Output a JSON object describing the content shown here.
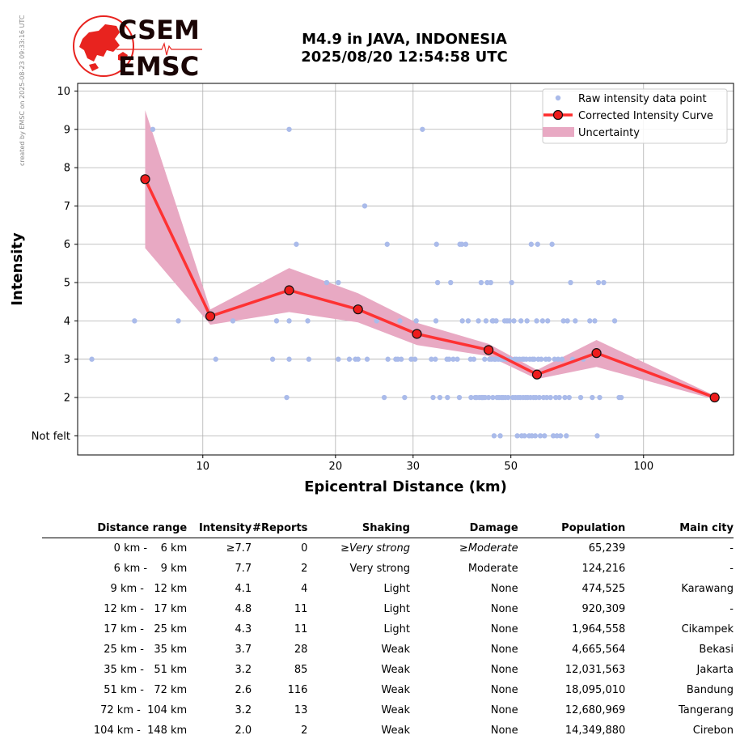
{
  "credit": "created by EMSC on 2025-08-23 09:33:16 UTC",
  "logo": {
    "line1": "CSEM",
    "line2": "EMSC",
    "accent": "#e8231f"
  },
  "title": {
    "line1": "M4.9 in JAVA, INDONESIA",
    "line2": "2025/08/20 12:54:58 UTC"
  },
  "chart_data": {
    "type": "line",
    "xlabel": "Epicentral Distance (km)",
    "ylabel": "Intensity",
    "x_scale": "log",
    "xlim": [
      5.2,
      160
    ],
    "ylim": [
      0.5,
      10.2
    ],
    "x_ticks": [
      10,
      20,
      30,
      50,
      100
    ],
    "y_ticks": [
      1,
      2,
      3,
      4,
      5,
      6,
      7,
      8,
      9,
      10
    ],
    "y_tick_labels": [
      "Not felt",
      "2",
      "3",
      "4",
      "5",
      "6",
      "7",
      "8",
      "9",
      "10"
    ],
    "grid": true,
    "legend_position": "top-right",
    "legend": [
      "Raw intensity data point",
      "Corrected Intensity Curve",
      "Uncertainty"
    ],
    "colors": {
      "raw": "#aabbea",
      "curve": "#ff2b2b",
      "marker_edge": "#111111",
      "uncertainty": "#e8a9c3"
    },
    "corrected_curve": {
      "x": [
        7.4,
        10.4,
        15.7,
        22.5,
        30.6,
        44.5,
        57.3,
        78.2,
        145.0
      ],
      "y": [
        7.7,
        4.12,
        4.8,
        4.3,
        3.66,
        3.24,
        2.6,
        3.16,
        2.0
      ]
    },
    "uncertainty": {
      "x": [
        7.4,
        10.4,
        15.7,
        22.5,
        30.6,
        44.5,
        57.3,
        78.2,
        145.0
      ],
      "upper": [
        9.5,
        4.3,
        5.38,
        4.72,
        3.95,
        3.4,
        2.72,
        3.5,
        2.05
      ],
      "lower": [
        5.9,
        3.9,
        4.23,
        3.96,
        3.37,
        3.08,
        2.48,
        2.8,
        1.95
      ]
    },
    "raw_points": [
      [
        5.6,
        3
      ],
      [
        7,
        4
      ],
      [
        7.7,
        9
      ],
      [
        8.8,
        4
      ],
      [
        10.7,
        3
      ],
      [
        11.7,
        4
      ],
      [
        14.4,
        3
      ],
      [
        14.7,
        4
      ],
      [
        15.7,
        9
      ],
      [
        15.7,
        4
      ],
      [
        15.7,
        3
      ],
      [
        15.5,
        2
      ],
      [
        16.3,
        6
      ],
      [
        17.3,
        4
      ],
      [
        17.4,
        3
      ],
      [
        19.1,
        5
      ],
      [
        20.3,
        5
      ],
      [
        20.3,
        3
      ],
      [
        21.5,
        3
      ],
      [
        22.2,
        3
      ],
      [
        22.5,
        3
      ],
      [
        23.3,
        7
      ],
      [
        23.6,
        3
      ],
      [
        24.8,
        4
      ],
      [
        25.8,
        2
      ],
      [
        26.2,
        6
      ],
      [
        26.3,
        3
      ],
      [
        27.4,
        3
      ],
      [
        27.7,
        3
      ],
      [
        28,
        4
      ],
      [
        28.2,
        3
      ],
      [
        28.7,
        2
      ],
      [
        29.7,
        3
      ],
      [
        30.3,
        3
      ],
      [
        30.5,
        4
      ],
      [
        31.5,
        9
      ],
      [
        33,
        3
      ],
      [
        33.3,
        2
      ],
      [
        33.7,
        3
      ],
      [
        33.8,
        4
      ],
      [
        33.9,
        6
      ],
      [
        34.1,
        5
      ],
      [
        34.5,
        2
      ],
      [
        35.8,
        3
      ],
      [
        35.9,
        2
      ],
      [
        36.2,
        3
      ],
      [
        36.5,
        5
      ],
      [
        37,
        3
      ],
      [
        37.8,
        3
      ],
      [
        38.2,
        2
      ],
      [
        38.3,
        6
      ],
      [
        38.7,
        6
      ],
      [
        38.8,
        4
      ],
      [
        39.5,
        6
      ],
      [
        40,
        4
      ],
      [
        40.5,
        3
      ],
      [
        40.6,
        2
      ],
      [
        41.2,
        3
      ],
      [
        41.5,
        2
      ],
      [
        41.8,
        2
      ],
      [
        42.2,
        4
      ],
      [
        42.4,
        2
      ],
      [
        42.8,
        5
      ],
      [
        42.9,
        2
      ],
      [
        43.1,
        2
      ],
      [
        43.3,
        2
      ],
      [
        43.6,
        3
      ],
      [
        43.7,
        2
      ],
      [
        43.9,
        4
      ],
      [
        44.2,
        5
      ],
      [
        44.5,
        2
      ],
      [
        44.7,
        3
      ],
      [
        45,
        5
      ],
      [
        45.2,
        3
      ],
      [
        45.4,
        4
      ],
      [
        45.5,
        2
      ],
      [
        45.6,
        4
      ],
      [
        45.8,
        1
      ],
      [
        45.9,
        3
      ],
      [
        46.1,
        3
      ],
      [
        46.3,
        4
      ],
      [
        46.5,
        2
      ],
      [
        46.8,
        3
      ],
      [
        47,
        2
      ],
      [
        47.3,
        1
      ],
      [
        47.4,
        3
      ],
      [
        47.6,
        2
      ],
      [
        47.8,
        3
      ],
      [
        48,
        2
      ],
      [
        48.2,
        3
      ],
      [
        48.4,
        4
      ],
      [
        48.6,
        2
      ],
      [
        48.8,
        3
      ],
      [
        49,
        4
      ],
      [
        49.3,
        2
      ],
      [
        49.6,
        4
      ],
      [
        49.8,
        3
      ],
      [
        50.2,
        5
      ],
      [
        50.5,
        2
      ],
      [
        50.8,
        4
      ],
      [
        51,
        3
      ],
      [
        51.2,
        2
      ],
      [
        51.5,
        3
      ],
      [
        51.7,
        1
      ],
      [
        51.9,
        2
      ],
      [
        52.3,
        3
      ],
      [
        52.5,
        2
      ],
      [
        52.7,
        4
      ],
      [
        52.9,
        1
      ],
      [
        53.1,
        3
      ],
      [
        53.3,
        2
      ],
      [
        53.5,
        3
      ],
      [
        53.7,
        1
      ],
      [
        54,
        2
      ],
      [
        54.2,
        3
      ],
      [
        54.4,
        4
      ],
      [
        54.6,
        2
      ],
      [
        55,
        1
      ],
      [
        55.2,
        3
      ],
      [
        55.4,
        2
      ],
      [
        55.6,
        6
      ],
      [
        55.8,
        1
      ],
      [
        56,
        3
      ],
      [
        56.3,
        2
      ],
      [
        56.5,
        3
      ],
      [
        56.8,
        1
      ],
      [
        57,
        2
      ],
      [
        57.2,
        4
      ],
      [
        57.5,
        6
      ],
      [
        57.7,
        3
      ],
      [
        58,
        2
      ],
      [
        58.3,
        1
      ],
      [
        58.6,
        3
      ],
      [
        59,
        4
      ],
      [
        59.3,
        2
      ],
      [
        59.6,
        1
      ],
      [
        60,
        3
      ],
      [
        60.3,
        2
      ],
      [
        60.6,
        4
      ],
      [
        61,
        3
      ],
      [
        61.5,
        2
      ],
      [
        62,
        6
      ],
      [
        62.4,
        1
      ],
      [
        62.8,
        3
      ],
      [
        63.2,
        2
      ],
      [
        63.6,
        1
      ],
      [
        64,
        3
      ],
      [
        64.4,
        2
      ],
      [
        64.8,
        1
      ],
      [
        65.3,
        3
      ],
      [
        65.8,
        4
      ],
      [
        66.3,
        2
      ],
      [
        66.8,
        1
      ],
      [
        67.2,
        4
      ],
      [
        67.8,
        2
      ],
      [
        68.3,
        5
      ],
      [
        69,
        3
      ],
      [
        70,
        4
      ],
      [
        72,
        2
      ],
      [
        73,
        3
      ],
      [
        75.5,
        4
      ],
      [
        76.5,
        2
      ],
      [
        77.5,
        4
      ],
      [
        78.5,
        1
      ],
      [
        79,
        5
      ],
      [
        79.5,
        2
      ],
      [
        81.2,
        5
      ],
      [
        86,
        4
      ],
      [
        88,
        2
      ],
      [
        89,
        2
      ]
    ]
  },
  "table": {
    "headers": [
      "Distance range",
      "Intensity",
      "#Reports",
      "Shaking",
      "Damage",
      "Population",
      "Main city"
    ],
    "rows": [
      {
        "range": "  0 km -    6 km",
        "intensity": "≥7.7",
        "reports": "0",
        "shaking_prefix": "≥",
        "shaking": "Very strong",
        "damage_prefix": "≥",
        "damage": "Moderate",
        "population": "65,239",
        "city": "-",
        "italic": true
      },
      {
        "range": "  6 km -    9 km",
        "intensity": "7.7",
        "reports": "2",
        "shaking_prefix": "",
        "shaking": "Very strong",
        "damage_prefix": "",
        "damage": "Moderate",
        "population": "124,216",
        "city": "-",
        "italic": false
      },
      {
        "range": "  9 km -   12 km",
        "intensity": "4.1",
        "reports": "4",
        "shaking_prefix": "",
        "shaking": "Light",
        "damage_prefix": "",
        "damage": "None",
        "population": "474,525",
        "city": "Karawang",
        "italic": false
      },
      {
        "range": " 12 km -   17 km",
        "intensity": "4.8",
        "reports": "11",
        "shaking_prefix": "",
        "shaking": "Light",
        "damage_prefix": "",
        "damage": "None",
        "population": "920,309",
        "city": "-",
        "italic": false
      },
      {
        "range": " 17 km -   25 km",
        "intensity": "4.3",
        "reports": "11",
        "shaking_prefix": "",
        "shaking": "Light",
        "damage_prefix": "",
        "damage": "None",
        "population": "1,964,558",
        "city": "Cikampek",
        "italic": false
      },
      {
        "range": " 25 km -   35 km",
        "intensity": "3.7",
        "reports": "28",
        "shaking_prefix": "",
        "shaking": "Weak",
        "damage_prefix": "",
        "damage": "None",
        "population": "4,665,564",
        "city": "Bekasi",
        "italic": false
      },
      {
        "range": " 35 km -   51 km",
        "intensity": "3.2",
        "reports": "85",
        "shaking_prefix": "",
        "shaking": "Weak",
        "damage_prefix": "",
        "damage": "None",
        "population": "12,031,563",
        "city": "Jakarta",
        "italic": false
      },
      {
        "range": " 51 km -   72 km",
        "intensity": "2.6",
        "reports": "116",
        "shaking_prefix": "",
        "shaking": "Weak",
        "damage_prefix": "",
        "damage": "None",
        "population": "18,095,010",
        "city": "Bandung",
        "italic": false
      },
      {
        "range": " 72 km -  104 km",
        "intensity": "3.2",
        "reports": "13",
        "shaking_prefix": "",
        "shaking": "Weak",
        "damage_prefix": "",
        "damage": "None",
        "population": "12,680,969",
        "city": "Tangerang",
        "italic": false
      },
      {
        "range": "104 km -  148 km",
        "intensity": "2.0",
        "reports": "2",
        "shaking_prefix": "",
        "shaking": "Weak",
        "damage_prefix": "",
        "damage": "None",
        "population": "14,349,880",
        "city": "Cirebon",
        "italic": false
      }
    ]
  }
}
